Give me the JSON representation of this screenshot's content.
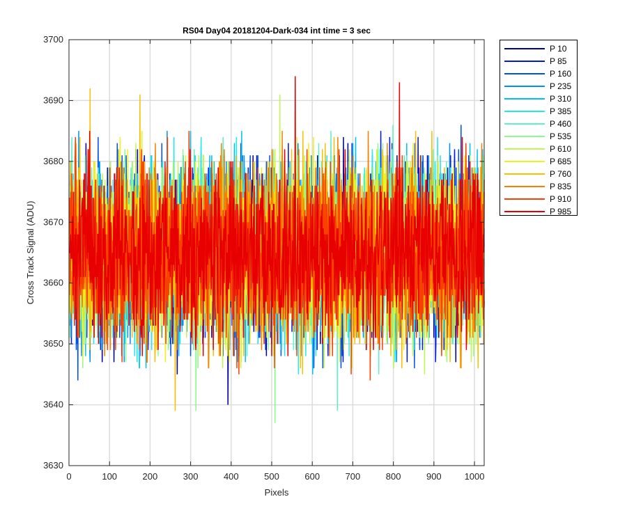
{
  "chart_data": {
    "type": "line",
    "title": "RS04 Day04 20181204-Dark-034 int time = 3 sec",
    "xlabel": "Pixels",
    "ylabel": "Cross Track Signal (ADU)",
    "xlim": [
      0,
      1024
    ],
    "ylim": [
      3630,
      3700
    ],
    "xticks": [
      0,
      100,
      200,
      300,
      400,
      500,
      600,
      700,
      800,
      900,
      1000
    ],
    "yticks": [
      3630,
      3640,
      3650,
      3660,
      3670,
      3680,
      3690,
      3700
    ],
    "grid": true,
    "legend_position": "outside-right-top",
    "noise_model": {
      "mean": 3665,
      "std": 7,
      "x_start": 1,
      "x_end": 1024
    },
    "series": [
      {
        "name": "P 10",
        "color": "#00009c"
      },
      {
        "name": "P 85",
        "color": "#0018d8"
      },
      {
        "name": "P 160",
        "color": "#0050f0"
      },
      {
        "name": "P 235",
        "color": "#0090f8"
      },
      {
        "name": "P 310",
        "color": "#00c0f8"
      },
      {
        "name": "P 385",
        "color": "#20e8f0"
      },
      {
        "name": "P 460",
        "color": "#60f0c8"
      },
      {
        "name": "P 535",
        "color": "#90f890"
      },
      {
        "name": "P 610",
        "color": "#c0f850"
      },
      {
        "name": "P 685",
        "color": "#f0f020"
      },
      {
        "name": "P 760",
        "color": "#f8c000"
      },
      {
        "name": "P 835",
        "color": "#f88000"
      },
      {
        "name": "P 910",
        "color": "#f84000"
      },
      {
        "name": "P 985",
        "color": "#e80000"
      }
    ],
    "peaks": [
      {
        "series": "P 985",
        "x": 558,
        "y": 3694
      },
      {
        "series": "P 985",
        "x": 815,
        "y": 3693
      },
      {
        "series": "P 760",
        "x": 52,
        "y": 3692
      },
      {
        "series": "P 760",
        "x": 175,
        "y": 3691
      },
      {
        "series": "P 610",
        "x": 520,
        "y": 3691
      },
      {
        "series": "P 535",
        "x": 508,
        "y": 3637
      },
      {
        "series": "P 760",
        "x": 262,
        "y": 3639
      },
      {
        "series": "P 10",
        "x": 392,
        "y": 3640
      },
      {
        "series": "P 460",
        "x": 662,
        "y": 3639
      },
      {
        "series": "P 535",
        "x": 313,
        "y": 3639
      }
    ]
  }
}
